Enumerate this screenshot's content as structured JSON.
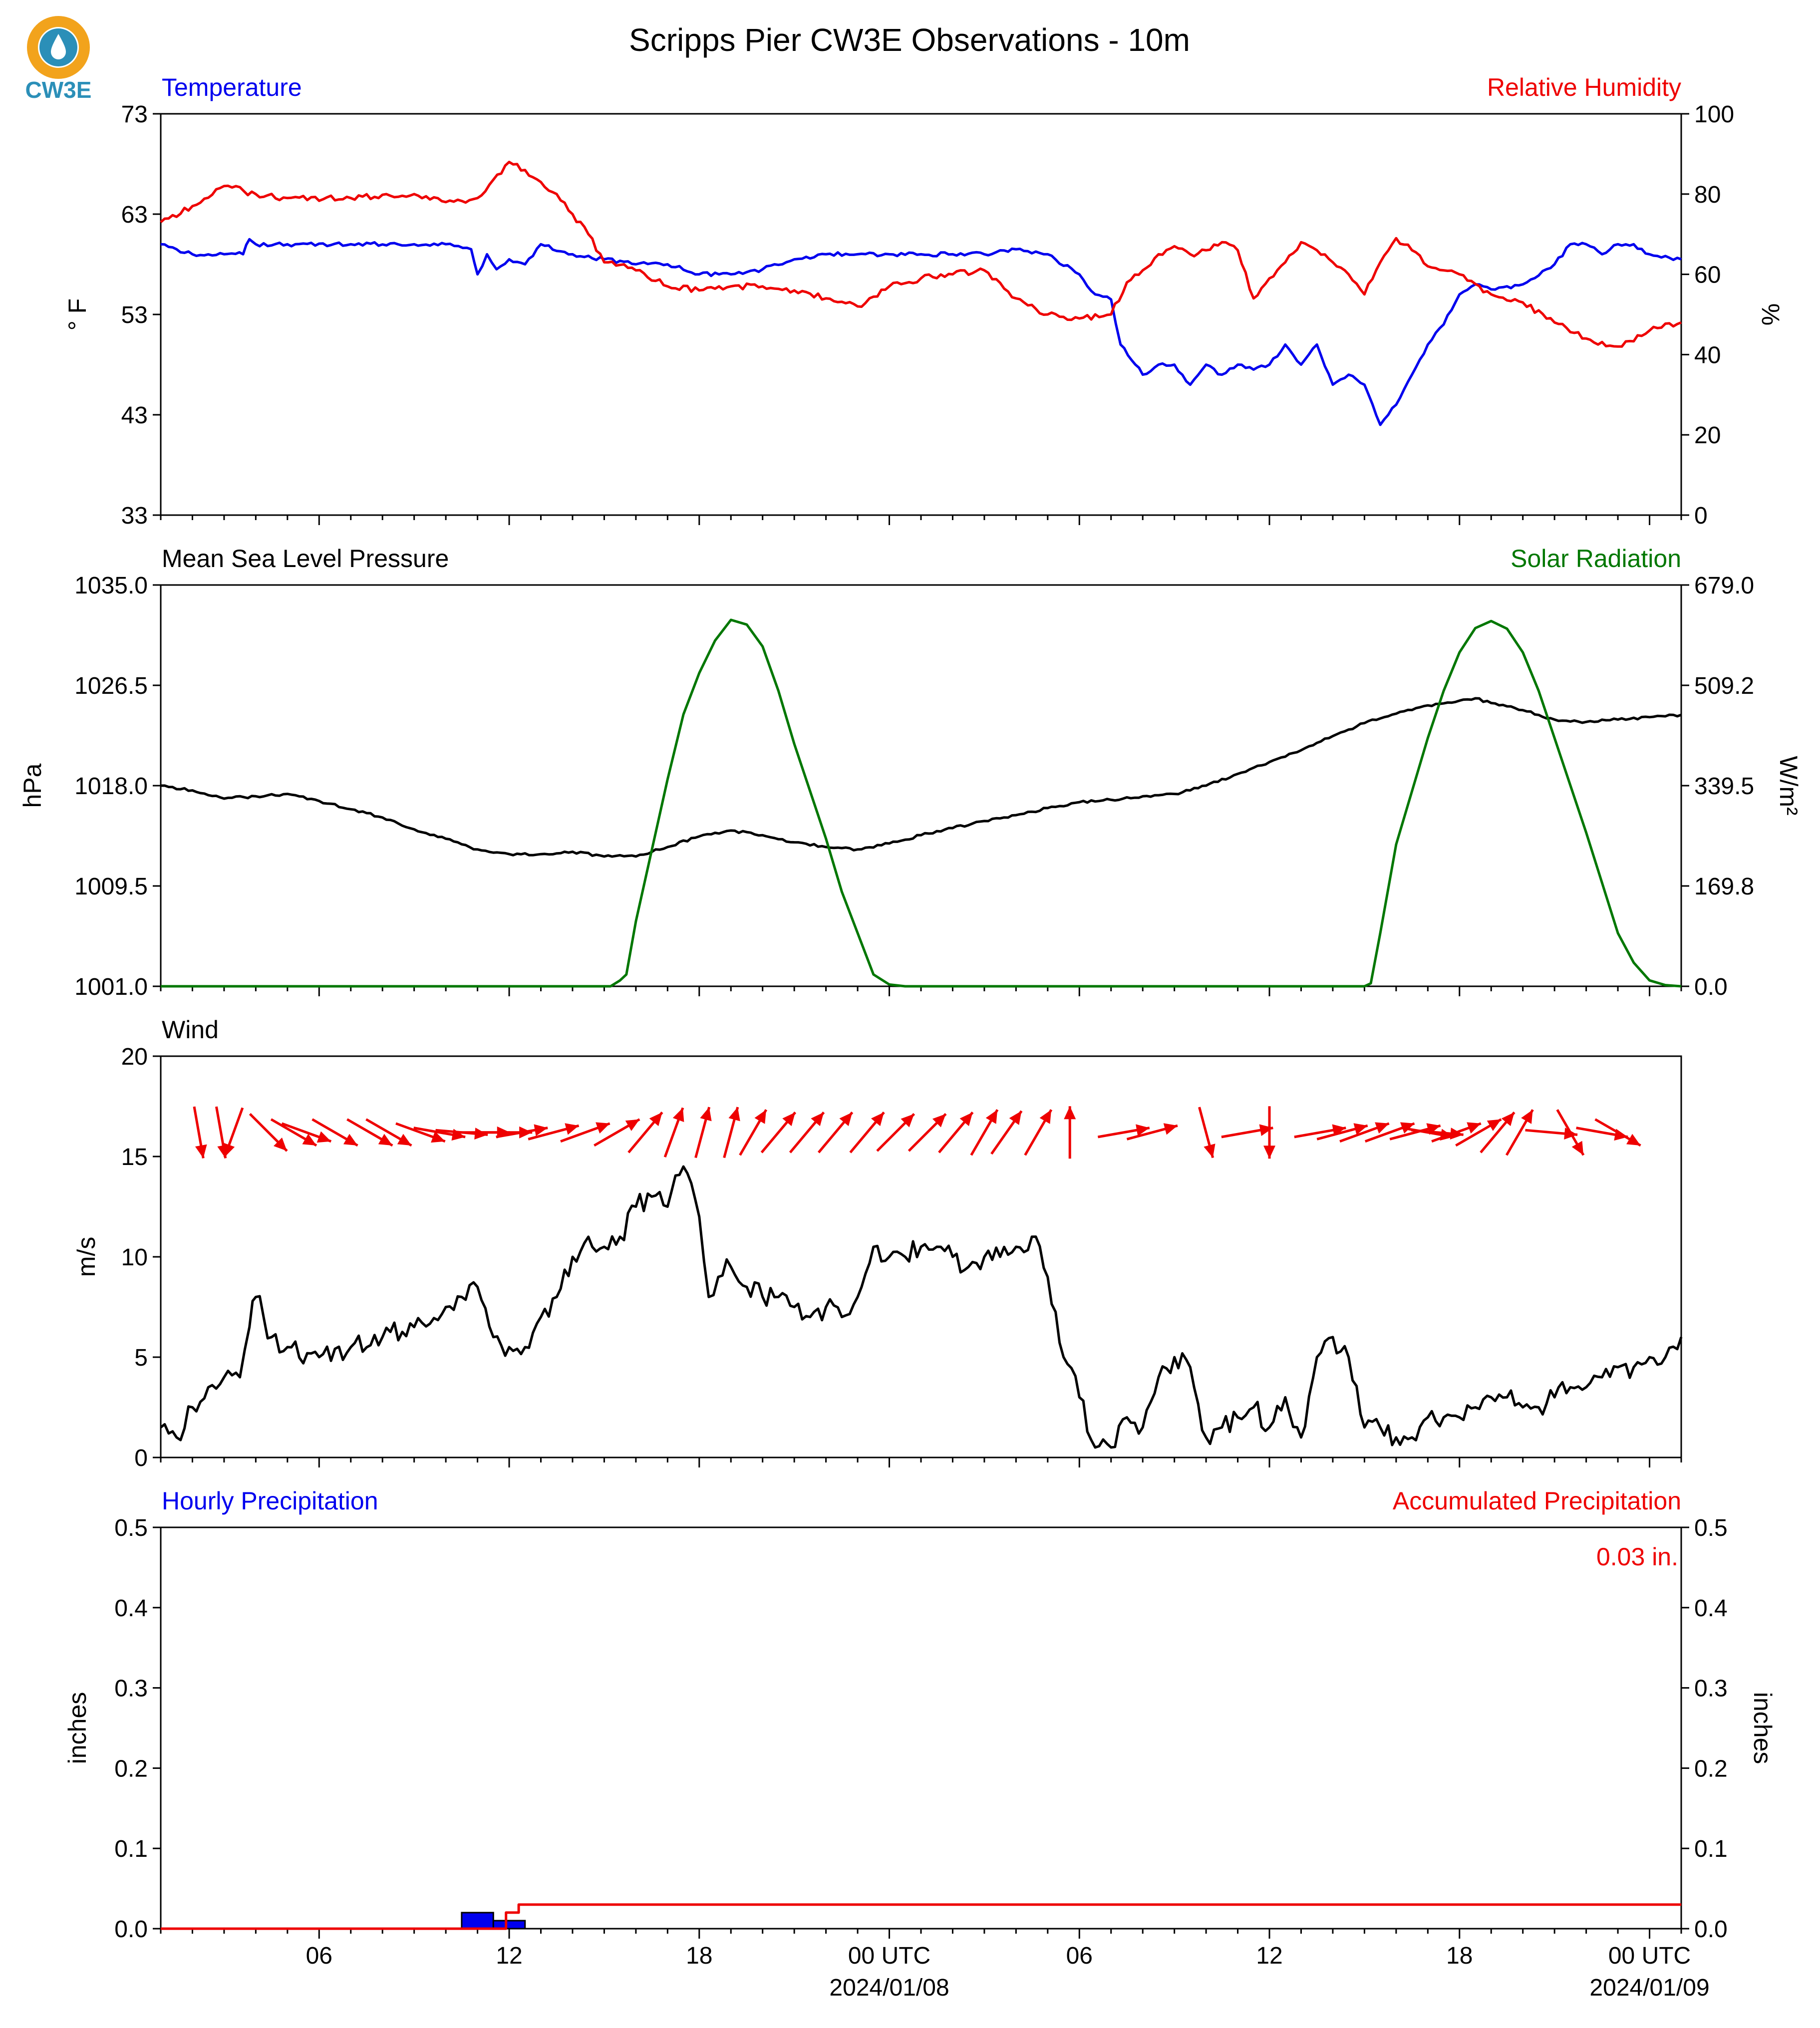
{
  "title": "Scripps Pier CW3E Observations - 10m",
  "logo": {
    "text": "CW3E",
    "colors": {
      "ring": "#f2a31c",
      "drop": "#2b8fb8",
      "text": "#2b8fb8"
    }
  },
  "colors": {
    "blue": "#0000ee",
    "red": "#ee0000",
    "green": "#007700",
    "black": "#000000"
  },
  "x_axis": {
    "range_hours": [
      0,
      48
    ],
    "ticks": [
      {
        "h": 5,
        "label": "06",
        "date": ""
      },
      {
        "h": 11,
        "label": "12",
        "date": ""
      },
      {
        "h": 17,
        "label": "18",
        "date": ""
      },
      {
        "h": 23,
        "label": "00 UTC",
        "date": "2024/01/08"
      },
      {
        "h": 29,
        "label": "06",
        "date": ""
      },
      {
        "h": 35,
        "label": "12",
        "date": ""
      },
      {
        "h": 41,
        "label": "18",
        "date": ""
      },
      {
        "h": 47,
        "label": "00 UTC",
        "date": "2024/01/09"
      }
    ]
  },
  "panels": {
    "temp_rh": {
      "left_title": "Temperature",
      "right_title": "Relative Humidity",
      "left_ylabel": "° F",
      "right_ylabel": "%",
      "left_ticks": [
        "73",
        "63",
        "53",
        "43",
        "33"
      ],
      "right_ticks": [
        "100",
        "80",
        "60",
        "40",
        "20",
        "0"
      ]
    },
    "pressure_solar": {
      "left_title": "Mean Sea Level Pressure",
      "right_title": "Solar Radiation",
      "left_ylabel": "hPa",
      "right_ylabel": "W/m²",
      "left_ticks": [
        "1035.0",
        "1026.5",
        "1018.0",
        "1009.5",
        "1001.0"
      ],
      "right_ticks": [
        "679.0",
        "509.2",
        "339.5",
        "169.8",
        "0.0"
      ]
    },
    "wind": {
      "left_title": "Wind",
      "left_ylabel": "m/s",
      "left_ticks": [
        "20",
        "15",
        "10",
        "5",
        "0"
      ]
    },
    "precip": {
      "left_title": "Hourly Precipitation",
      "right_title": "Accumulated Precipitation",
      "left_ylabel": "inches",
      "right_ylabel": "inches",
      "left_ticks": [
        "0.5",
        "0.4",
        "0.3",
        "0.2",
        "0.1",
        "0.0"
      ],
      "right_ticks": [
        "0.5",
        "0.4",
        "0.3",
        "0.2",
        "0.1",
        "0.0"
      ],
      "total_label": "0.03 in."
    }
  },
  "chart_data": [
    {
      "type": "line",
      "name": "Temperature",
      "ylim": [
        33,
        73
      ],
      "unit": "°F",
      "x_hours": [
        0,
        0.5,
        1,
        2,
        2.6,
        2.8,
        3,
        4,
        6,
        8,
        9,
        9.8,
        10,
        10.3,
        10.6,
        11,
        11.5,
        12,
        13,
        14,
        15,
        16,
        17,
        18,
        19,
        20,
        21,
        22,
        23,
        24,
        25,
        26,
        27,
        28,
        29,
        29.5,
        30,
        30.3,
        31,
        31.5,
        32,
        32.5,
        33,
        33.5,
        34,
        34.5,
        35,
        35.5,
        36,
        36.5,
        37,
        37.5,
        38,
        38.5,
        39,
        39.5,
        40,
        40.5,
        41,
        41.5,
        42,
        43,
        44,
        44.5,
        45,
        45.5,
        46,
        46.5,
        47,
        48
      ],
      "y": [
        60,
        59.5,
        59,
        59,
        59,
        60.5,
        60,
        60,
        60,
        60,
        60,
        59.5,
        57,
        59,
        57.5,
        58.5,
        58,
        60,
        59,
        58.5,
        58,
        58,
        57,
        57,
        57.5,
        58.5,
        59,
        59,
        59,
        59,
        59,
        59,
        59.5,
        59,
        57,
        55,
        54.5,
        50,
        47,
        48,
        48,
        46,
        48,
        47,
        48,
        47.5,
        48,
        50,
        48,
        50,
        46,
        47,
        46,
        42,
        44,
        47,
        50,
        52,
        55,
        56,
        55.5,
        56,
        58,
        60,
        60,
        59,
        60,
        60,
        59,
        58.5
      ]
    },
    {
      "type": "line",
      "name": "Relative Humidity",
      "ylim": [
        0,
        100
      ],
      "unit": "%",
      "x_hours": [
        0,
        1,
        2,
        3,
        4,
        6,
        8,
        9,
        10,
        11,
        11.5,
        12,
        12.5,
        13,
        13.5,
        14,
        15,
        16,
        17,
        18,
        19,
        20,
        21,
        22,
        23,
        24,
        25,
        26,
        27,
        28,
        29,
        30,
        30.5,
        31,
        31.5,
        32,
        32.5,
        33,
        33.5,
        34,
        34.5,
        35,
        35.5,
        36,
        36.5,
        37,
        37.5,
        38,
        38.5,
        39,
        39.5,
        40,
        40.5,
        41,
        42,
        43,
        44,
        45,
        46,
        47,
        48
      ],
      "y": [
        73,
        77,
        82,
        80,
        79,
        79,
        80,
        78,
        79,
        88,
        86,
        83,
        80,
        75,
        70,
        63,
        61,
        57,
        56,
        57,
        57,
        56,
        54,
        52,
        57,
        59,
        60,
        61,
        54,
        50,
        49,
        50,
        58,
        61,
        65,
        67,
        65,
        66,
        68,
        66,
        54,
        59,
        63,
        68,
        66,
        63,
        60,
        55,
        63,
        69,
        66,
        62,
        61,
        60,
        55,
        53,
        48,
        44,
        42,
        46,
        48
      ]
    },
    {
      "type": "line",
      "name": "Mean Sea Level Pressure",
      "ylim": [
        1001,
        1035
      ],
      "unit": "hPa",
      "x_hours": [
        0,
        1,
        2,
        3,
        4,
        5,
        6,
        7,
        8,
        9,
        10,
        11,
        12,
        13,
        14,
        15,
        16,
        17,
        18,
        19,
        20,
        21,
        22,
        23,
        24,
        25,
        26,
        27,
        28,
        29,
        30,
        31,
        32,
        33,
        34,
        35,
        36,
        37,
        38,
        39,
        40,
        41,
        41.5,
        42,
        43,
        44,
        45,
        46,
        47,
        48
      ],
      "y": [
        1018,
        1017.6,
        1016.9,
        1017.1,
        1017.3,
        1016.7,
        1016,
        1015.3,
        1014.3,
        1013.5,
        1012.6,
        1012.2,
        1012.2,
        1012.4,
        1012.0,
        1012.0,
        1012.8,
        1013.7,
        1014.2,
        1013.8,
        1013.2,
        1012.8,
        1012.6,
        1013.1,
        1013.8,
        1014.4,
        1015.0,
        1015.5,
        1016.1,
        1016.6,
        1016.8,
        1017.1,
        1017.3,
        1018.0,
        1019.0,
        1020.0,
        1021.0,
        1022.2,
        1023.3,
        1024.1,
        1024.8,
        1025.2,
        1025.4,
        1025.0,
        1024.4,
        1023.6,
        1023.4,
        1023.6,
        1023.8,
        1024.0
      ]
    },
    {
      "type": "line",
      "name": "Solar Radiation",
      "ylim": [
        0,
        679
      ],
      "unit": "W/m²",
      "x_hours": [
        0,
        14.2,
        14.5,
        14.7,
        15,
        15.5,
        16,
        16.5,
        17,
        17.5,
        18,
        18.5,
        19,
        19.5,
        20,
        20.5,
        21,
        21.5,
        22,
        22.5,
        23,
        23.5,
        24,
        24.3,
        24.6,
        25,
        38,
        38.2,
        38.5,
        38.8,
        39,
        39.5,
        40,
        40.5,
        41,
        41.5,
        42,
        42.5,
        43,
        43.5,
        44,
        44.5,
        45,
        45.5,
        46,
        46.5,
        47,
        47.5,
        48
      ],
      "y": [
        0,
        0,
        10,
        20,
        110,
        230,
        350,
        460,
        530,
        585,
        620,
        612,
        575,
        500,
        410,
        330,
        250,
        160,
        90,
        20,
        3,
        0,
        0,
        0,
        0,
        0,
        0,
        5,
        90,
        180,
        240,
        330,
        420,
        500,
        565,
        606,
        618,
        605,
        565,
        500,
        420,
        340,
        260,
        175,
        90,
        40,
        10,
        2,
        0
      ]
    },
    {
      "type": "line",
      "name": "Wind Speed",
      "ylim": [
        0,
        20
      ],
      "unit": "m/s",
      "x_hours": [
        0,
        0.5,
        1,
        1.5,
        2,
        2.5,
        2.8,
        3,
        3.5,
        4,
        5,
        6,
        7,
        8,
        9,
        9.5,
        10,
        10.5,
        11,
        11.5,
        12,
        12.5,
        13,
        13.5,
        14,
        14.5,
        15,
        15.5,
        16,
        16.5,
        17,
        17.3,
        17.6,
        18,
        18.5,
        19,
        19.5,
        20,
        20.5,
        21,
        21.5,
        22,
        22.5,
        23,
        23.5,
        24,
        24.5,
        25,
        25.5,
        26,
        26.5,
        27,
        27.5,
        28,
        28.5,
        29,
        29.5,
        30,
        30.5,
        31,
        31.5,
        32,
        32.5,
        33,
        33.5,
        34,
        34.5,
        35,
        35.5,
        36,
        36.5,
        37,
        37.5,
        38,
        38.5,
        39,
        39.5,
        40,
        40.5,
        41,
        41.5,
        42,
        42.5,
        43,
        43.5,
        44,
        44.5,
        45,
        45.5,
        46,
        46.5,
        47,
        47.5,
        48
      ],
      "y": [
        1.5,
        1,
        2.5,
        3.5,
        4,
        4,
        6.5,
        8,
        6,
        5.5,
        5,
        5.5,
        6,
        6.5,
        7.5,
        8,
        8.5,
        6,
        5.5,
        5.5,
        7,
        8,
        10,
        11,
        10.5,
        11,
        12.5,
        13,
        12.5,
        14.5,
        12,
        8,
        9,
        9.5,
        8.5,
        8,
        8,
        7.5,
        7,
        7.5,
        7,
        8,
        10.5,
        10,
        10,
        10.5,
        10.5,
        10,
        9.5,
        10,
        10,
        10.5,
        11,
        9,
        5,
        3,
        0.5,
        0.5,
        2,
        1.5,
        4,
        5,
        4.5,
        1,
        1.5,
        2,
        2.5,
        1.5,
        3,
        1,
        5,
        6,
        5,
        1.5,
        1.5,
        1,
        1,
        2,
        2,
        2,
        2.5,
        3,
        3,
        2.5,
        2.5,
        3,
        3.5,
        3.5,
        4,
        4.5,
        4.5,
        5,
        5,
        6
      ]
    },
    {
      "type": "vector",
      "name": "Wind Direction Arrows",
      "x_hours": [
        1.2,
        1.9,
        2.3,
        3.4,
        4.2,
        4.6,
        5.5,
        6.6,
        7.2,
        8.2,
        8.8,
        9.5,
        10.2,
        10.9,
        11.4,
        12.4,
        13.4,
        14.4,
        15.3,
        16.2,
        17.1,
        18.0,
        18.7,
        19.5,
        20.4,
        21.3,
        22.3,
        23.2,
        24.2,
        25.1,
        26.0,
        26.7,
        27.7,
        28.7,
        30.4,
        31.3,
        33.0,
        34.3,
        35.0,
        36.6,
        37.3,
        38.0,
        38.8,
        39.6,
        40.0,
        40.3,
        40.9,
        41.6,
        42.2,
        42.9,
        43.9,
        44.5,
        45.5,
        46.0
      ],
      "angle_deg": [
        -80,
        -80,
        -110,
        -45,
        -30,
        -20,
        -30,
        -30,
        -30,
        -20,
        -10,
        -5,
        0,
        0,
        10,
        15,
        20,
        30,
        50,
        70,
        75,
        75,
        60,
        50,
        50,
        50,
        50,
        45,
        45,
        50,
        60,
        55,
        60,
        90,
        10,
        15,
        -75,
        10,
        -90,
        10,
        15,
        20,
        20,
        15,
        -10,
        -5,
        20,
        30,
        50,
        60,
        -5,
        -60,
        -10,
        -30
      ]
    },
    {
      "type": "bar",
      "name": "Hourly Precipitation",
      "ylim": [
        0,
        0.5
      ],
      "unit": "inches",
      "bars": [
        {
          "x_hours": 9.5,
          "width_hours": 1,
          "value": 0.02
        },
        {
          "x_hours": 10.5,
          "width_hours": 1,
          "value": 0.01
        }
      ]
    },
    {
      "type": "line",
      "name": "Accumulated Precipitation",
      "ylim": [
        0,
        0.5
      ],
      "unit": "inches",
      "x_hours": [
        0,
        10,
        10.9,
        10.9,
        11.3,
        11.3,
        48
      ],
      "y": [
        0,
        0,
        0,
        0.02,
        0.02,
        0.03,
        0.03
      ]
    }
  ]
}
